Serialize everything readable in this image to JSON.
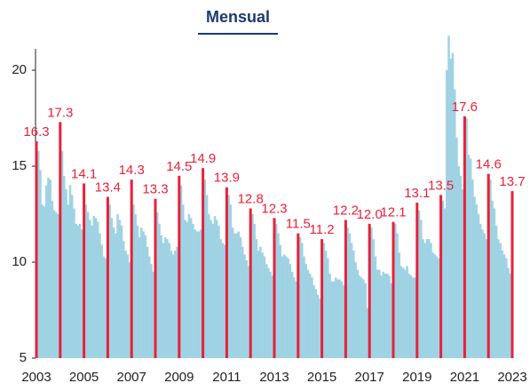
{
  "chart_data": {
    "type": "bar",
    "title": "Mensual",
    "categories": [
      "2003",
      null,
      null,
      null,
      null,
      null,
      null,
      null,
      null,
      null,
      null,
      null,
      null,
      null,
      null,
      null,
      null,
      null,
      null,
      null,
      null,
      null,
      null,
      null,
      "2005",
      null,
      null,
      null,
      null,
      null,
      null,
      null,
      null,
      null,
      null,
      null,
      null,
      null,
      null,
      null,
      null,
      null,
      null,
      null,
      null,
      null,
      null,
      null,
      "2007",
      null,
      null,
      null,
      null,
      null,
      null,
      null,
      null,
      null,
      null,
      null,
      null,
      null,
      null,
      null,
      null,
      null,
      null,
      null,
      null,
      null,
      null,
      null,
      "2009",
      null,
      null,
      null,
      null,
      null,
      null,
      null,
      null,
      null,
      null,
      null,
      null,
      null,
      null,
      null,
      null,
      null,
      null,
      null,
      null,
      null,
      null,
      null,
      "2011",
      null,
      null,
      null,
      null,
      null,
      null,
      null,
      null,
      null,
      null,
      null,
      null,
      null,
      null,
      null,
      null,
      null,
      null,
      null,
      null,
      null,
      null,
      null,
      "2013",
      null,
      null,
      null,
      null,
      null,
      null,
      null,
      null,
      null,
      null,
      null,
      null,
      null,
      null,
      null,
      null,
      null,
      null,
      null,
      null,
      null,
      null,
      null,
      "2015",
      null,
      null,
      null,
      null,
      null,
      null,
      null,
      null,
      null,
      null,
      null,
      null,
      null,
      null,
      null,
      null,
      null,
      null,
      null,
      null,
      null,
      null,
      null,
      "2017",
      null,
      null,
      null,
      null,
      null,
      null,
      null,
      null,
      null,
      null,
      null,
      null,
      null,
      null,
      null,
      null,
      null,
      null,
      null,
      null,
      null,
      null,
      null,
      "2019",
      null,
      null,
      null,
      null,
      null,
      null,
      null,
      null,
      null,
      null,
      null,
      null,
      null,
      null,
      null,
      null,
      null,
      null,
      null,
      null,
      null,
      null,
      null,
      "2021",
      null,
      null,
      null,
      null,
      null,
      null,
      null,
      null,
      null,
      null,
      null,
      null,
      null,
      null,
      null,
      null,
      null,
      null,
      null,
      null,
      null,
      null,
      null,
      "2023"
    ],
    "series": [
      {
        "color": "#9fd3e3",
        "values": [
          null,
          15.8,
          14.8,
          13.0,
          12.9,
          14.0,
          14.4,
          14.3,
          13.2,
          12.7,
          12.6,
          12.5,
          null,
          15.8,
          14.5,
          13.8,
          13.0,
          14.0,
          13.5,
          12.8,
          12.0,
          11.9,
          12.0,
          11.7,
          null,
          13.0,
          12.6,
          12.2,
          11.9,
          12.4,
          12.3,
          12.1,
          11.5,
          10.9,
          10.3,
          10.2,
          null,
          13.0,
          12.3,
          11.8,
          11.5,
          12.5,
          12.2,
          11.9,
          11.1,
          10.6,
          10.4,
          10.0,
          null,
          13.0,
          12.5,
          11.9,
          11.3,
          11.8,
          11.6,
          11.4,
          10.8,
          10.3,
          9.9,
          9.5,
          null,
          12.6,
          12.0,
          11.4,
          11.0,
          11.3,
          11.2,
          11.0,
          10.6,
          10.4,
          10.6,
          10.8,
          null,
          14.0,
          13.0,
          12.2,
          12.1,
          12.5,
          12.3,
          12.0,
          11.7,
          11.6,
          11.6,
          11.7,
          null,
          14.3,
          13.5,
          12.5,
          12.2,
          12.0,
          12.4,
          12.2,
          11.9,
          11.2,
          11.0,
          10.9,
          null,
          13.5,
          13.0,
          11.8,
          11.5,
          11.5,
          11.6,
          11.3,
          10.8,
          10.4,
          10.1,
          9.8,
          null,
          12.5,
          12.0,
          11.2,
          10.6,
          10.8,
          10.5,
          10.3,
          9.9,
          9.7,
          9.5,
          9.3,
          null,
          12.0,
          11.5,
          10.9,
          10.3,
          10.4,
          10.3,
          10.2,
          9.9,
          9.5,
          9.2,
          9.0,
          null,
          11.3,
          11.0,
          10.3,
          9.9,
          9.6,
          9.4,
          9.2,
          8.8,
          8.6,
          8.3,
          8.1,
          null,
          11.0,
          10.6,
          10.2,
          9.4,
          9.0,
          9.0,
          9.2,
          9.1,
          9.1,
          9.0,
          8.8,
          null,
          11.8,
          11.5,
          11.0,
          10.6,
          10.0,
          9.6,
          9.3,
          9.2,
          9.1,
          8.9,
          7.6,
          null,
          11.8,
          11.2,
          10.3,
          9.6,
          9.6,
          9.3,
          9.5,
          9.4,
          9.4,
          9.3,
          8.9,
          null,
          12.0,
          11.5,
          10.5,
          9.8,
          9.7,
          9.6,
          9.8,
          9.4,
          9.3,
          9.2,
          9.2,
          null,
          12.7,
          12.2,
          11.2,
          11.0,
          11.2,
          11.2,
          11.0,
          10.5,
          10.4,
          10.3,
          10.2,
          null,
          13.2,
          12.8,
          20.0,
          21.8,
          20.6,
          20.9,
          19.0,
          16.5,
          15.0,
          14.5,
          13.8,
          null,
          17.5,
          15.6,
          15.4,
          14.3,
          13.4,
          13.0,
          12.5,
          12.0,
          11.7,
          11.5,
          11.2,
          null,
          14.3,
          13.2,
          12.8,
          11.9,
          11.2,
          11.0,
          10.6,
          10.4,
          10.2,
          9.7,
          9.4,
          null
        ]
      },
      {
        "color": "#e8213a",
        "values": [
          16.3,
          null,
          null,
          null,
          null,
          null,
          null,
          null,
          null,
          null,
          null,
          null,
          17.3,
          null,
          null,
          null,
          null,
          null,
          null,
          null,
          null,
          null,
          null,
          null,
          14.1,
          null,
          null,
          null,
          null,
          null,
          null,
          null,
          null,
          null,
          null,
          null,
          13.4,
          null,
          null,
          null,
          null,
          null,
          null,
          null,
          null,
          null,
          null,
          null,
          14.3,
          null,
          null,
          null,
          null,
          null,
          null,
          null,
          null,
          null,
          null,
          null,
          13.3,
          null,
          null,
          null,
          null,
          null,
          null,
          null,
          null,
          null,
          null,
          null,
          14.5,
          null,
          null,
          null,
          null,
          null,
          null,
          null,
          null,
          null,
          null,
          null,
          14.9,
          null,
          null,
          null,
          null,
          null,
          null,
          null,
          null,
          null,
          null,
          null,
          13.9,
          null,
          null,
          null,
          null,
          null,
          null,
          null,
          null,
          null,
          null,
          null,
          12.8,
          null,
          null,
          null,
          null,
          null,
          null,
          null,
          null,
          null,
          null,
          null,
          12.3,
          null,
          null,
          null,
          null,
          null,
          null,
          null,
          null,
          null,
          null,
          null,
          11.5,
          null,
          null,
          null,
          null,
          null,
          null,
          null,
          null,
          null,
          null,
          null,
          11.2,
          null,
          null,
          null,
          null,
          null,
          null,
          null,
          null,
          null,
          null,
          null,
          12.2,
          null,
          null,
          null,
          null,
          null,
          null,
          null,
          null,
          null,
          null,
          null,
          12.0,
          null,
          null,
          null,
          null,
          null,
          null,
          null,
          null,
          null,
          null,
          null,
          12.1,
          null,
          null,
          null,
          null,
          null,
          null,
          null,
          null,
          null,
          null,
          null,
          13.1,
          null,
          null,
          null,
          null,
          null,
          null,
          null,
          null,
          null,
          null,
          null,
          13.5,
          null,
          null,
          null,
          null,
          null,
          null,
          null,
          null,
          null,
          null,
          null,
          17.6,
          null,
          null,
          null,
          null,
          null,
          null,
          null,
          null,
          null,
          null,
          null,
          14.6,
          null,
          null,
          null,
          null,
          null,
          null,
          null,
          null,
          null,
          null,
          null,
          13.7
        ],
        "value_labels": [
          "16.3",
          null,
          null,
          null,
          null,
          null,
          null,
          null,
          null,
          null,
          null,
          null,
          "17.3",
          null,
          null,
          null,
          null,
          null,
          null,
          null,
          null,
          null,
          null,
          null,
          "14.1",
          null,
          null,
          null,
          null,
          null,
          null,
          null,
          null,
          null,
          null,
          null,
          "13.4",
          null,
          null,
          null,
          null,
          null,
          null,
          null,
          null,
          null,
          null,
          null,
          "14.3",
          null,
          null,
          null,
          null,
          null,
          null,
          null,
          null,
          null,
          null,
          null,
          "13.3",
          null,
          null,
          null,
          null,
          null,
          null,
          null,
          null,
          null,
          null,
          null,
          "14.5",
          null,
          null,
          null,
          null,
          null,
          null,
          null,
          null,
          null,
          null,
          null,
          "14.9",
          null,
          null,
          null,
          null,
          null,
          null,
          null,
          null,
          null,
          null,
          null,
          "13.9",
          null,
          null,
          null,
          null,
          null,
          null,
          null,
          null,
          null,
          null,
          null,
          "12.8",
          null,
          null,
          null,
          null,
          null,
          null,
          null,
          null,
          null,
          null,
          null,
          "12.3",
          null,
          null,
          null,
          null,
          null,
          null,
          null,
          null,
          null,
          null,
          null,
          "11.5",
          null,
          null,
          null,
          null,
          null,
          null,
          null,
          null,
          null,
          null,
          null,
          "11.2",
          null,
          null,
          null,
          null,
          null,
          null,
          null,
          null,
          null,
          null,
          null,
          "12.2",
          null,
          null,
          null,
          null,
          null,
          null,
          null,
          null,
          null,
          null,
          null,
          "12.0",
          null,
          null,
          null,
          null,
          null,
          null,
          null,
          null,
          null,
          null,
          null,
          "12.1",
          null,
          null,
          null,
          null,
          null,
          null,
          null,
          null,
          null,
          null,
          null,
          "13.1",
          null,
          null,
          null,
          null,
          null,
          null,
          null,
          null,
          null,
          null,
          null,
          "13.5",
          null,
          null,
          null,
          null,
          null,
          null,
          null,
          null,
          null,
          null,
          null,
          "17.6",
          null,
          null,
          null,
          null,
          null,
          null,
          null,
          null,
          null,
          null,
          null,
          "14.6",
          null,
          null,
          null,
          null,
          null,
          null,
          null,
          null,
          null,
          null,
          null,
          "13.7"
        ]
      }
    ],
    "ylim": [
      5,
      21.9
    ],
    "yticks": [
      5,
      10,
      15,
      20
    ]
  }
}
